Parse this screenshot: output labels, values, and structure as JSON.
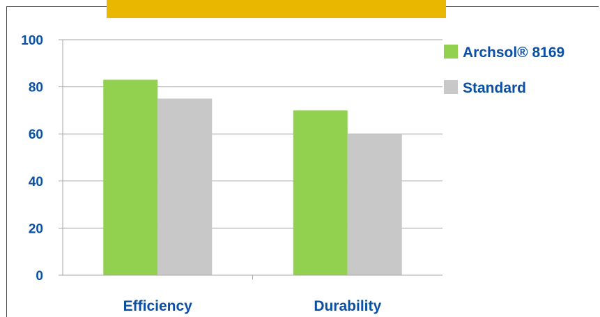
{
  "chart_data": {
    "type": "bar",
    "title": "",
    "categories": [
      "Efficiency",
      "Durability"
    ],
    "series": [
      {
        "name": "Archsol® 8169",
        "values": [
          83,
          70
        ],
        "color": "#92d050"
      },
      {
        "name": "Standard",
        "values": [
          75,
          60
        ],
        "color": "#c8c8c8"
      }
    ],
    "yticks": [
      0,
      20,
      40,
      60,
      80,
      100
    ],
    "ylim": [
      0,
      100
    ],
    "grid": true,
    "legend": "right",
    "xlabel": "",
    "ylabel": ""
  },
  "colors": {
    "axis_text": "#0a4fa3",
    "gridline": "#a6a6a6",
    "banner": "#e9b700",
    "frame": "#2e4f7f"
  }
}
